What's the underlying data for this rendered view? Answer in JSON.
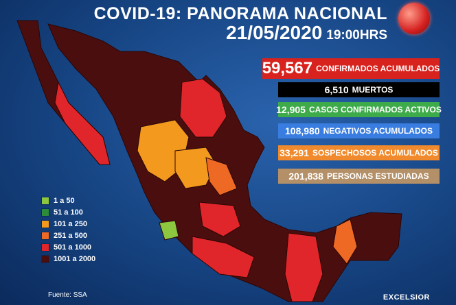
{
  "header": {
    "title": "COVID-19: PANORAMA NACIONAL",
    "date": "21/05/2020",
    "time": "19:00HRS"
  },
  "stats": [
    {
      "value": "59,567",
      "label": "CONFIRMADOS ACUMULADOS",
      "color": "#d8221e"
    },
    {
      "value": "6,510",
      "label": "MUERTOS",
      "color": "#000000"
    },
    {
      "value": "12,905",
      "label": "CASOS CONFIRMADOS ACTIVOS",
      "color": "#3dab4a"
    },
    {
      "value": "108,980",
      "label": "NEGATIVOS ACUMULADOS",
      "color": "#3a7de0"
    },
    {
      "value": "33,291",
      "label": "SOSPECHOSOS ACUMULADOS",
      "color": "#f08a2c"
    },
    {
      "value": "201,838",
      "label": "PERSONAS ESTUDIADAS",
      "color": "#b49068"
    }
  ],
  "legend": [
    {
      "label": "1 a 50",
      "color": "#8dc63f"
    },
    {
      "label": "51 a 100",
      "color": "#2e8b3a"
    },
    {
      "label": "101 a 250",
      "color": "#f39a1e"
    },
    {
      "label": "251 a 500",
      "color": "#ee6a24"
    },
    {
      "label": "501 a 1000",
      "color": "#e0262a"
    },
    {
      "label": "1001 a 2000",
      "color": "#4a0e0e"
    }
  ],
  "source": "Fuente: SSA",
  "brand": "EXCELSIOR"
}
